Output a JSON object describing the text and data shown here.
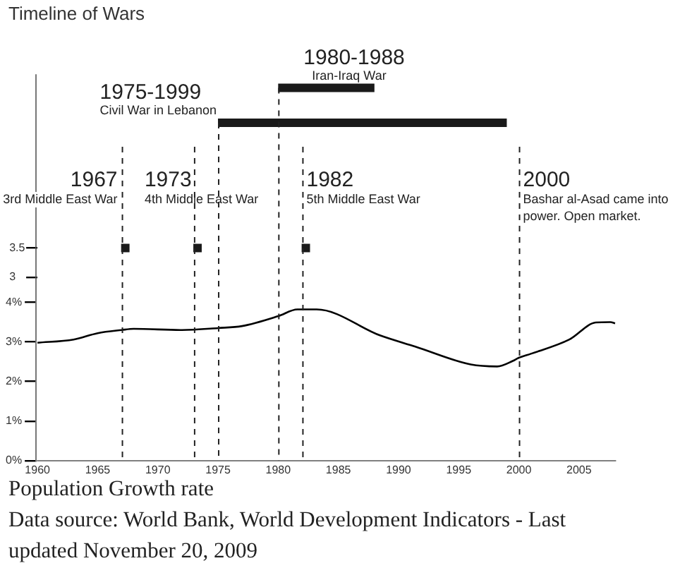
{
  "chart_data": {
    "type": "line",
    "title": "Timeline of Wars",
    "x": [
      1960,
      1963,
      1965,
      1967,
      1968,
      1972,
      1975,
      1977,
      1980,
      1981.6,
      1983.2,
      1988.5,
      1991.4,
      1996,
      1998.2,
      1999.5,
      2000,
      2001,
      2004.2,
      2006.4,
      2007.6,
      2008
    ],
    "series": [
      {
        "color": "#000000",
        "marker": "none",
        "values": [
          2.98,
          3.06,
          3.22,
          3.3,
          3.33,
          3.3,
          3.35,
          3.4,
          3.65,
          3.82,
          3.82,
          3.16,
          2.88,
          2.43,
          2.38,
          2.52,
          2.6,
          2.7,
          3.06,
          3.49,
          3.5,
          3.47
        ]
      },
      {
        "type": "scatter",
        "axis": "y2",
        "marker": "square",
        "color": "#1a1a1a",
        "x": [
          1967.3,
          1973.3,
          1982.3
        ],
        "values": [
          3.5,
          3.5,
          3.5
        ]
      },
      {
        "name": "1975-1999 Civil War in Lebanon",
        "axis": "y2",
        "marker": "none",
        "color": "#1a1a1a",
        "x": [
          1975,
          1999
        ],
        "values": [
          5.65,
          5.65
        ]
      },
      {
        "name": "1980-1988 Iran-Iraq War",
        "axis": "y2",
        "marker": "none",
        "color": "#1a1a1a",
        "x": [
          1980,
          1988
        ],
        "values": [
          6.25,
          6.25
        ]
      }
    ],
    "xlim": [
      1960,
      2008
    ],
    "xticks": [
      1960,
      1965,
      1970,
      1975,
      1980,
      1985,
      1990,
      1995,
      2000,
      2005
    ],
    "ylim": [
      0,
      9.75
    ],
    "yticks": [
      {
        "value": 0,
        "label": "0%"
      },
      {
        "value": 1,
        "label": "1%"
      },
      {
        "value": 2,
        "label": "2%"
      },
      {
        "value": 3,
        "label": "3%"
      },
      {
        "value": 4,
        "label": "4%"
      }
    ],
    "y2lim": [
      -0.15,
      6.475
    ],
    "y2ticks": [
      3,
      3.5
    ],
    "ref_lines": [
      {
        "axis": "x",
        "value": 1967,
        "label": "1967",
        "line_style": "dashed",
        "color": "#222222"
      },
      {
        "axis": "x",
        "value": 1973,
        "label": "1973",
        "line_style": "dashed",
        "color": "#222222"
      },
      {
        "axis": "x",
        "value": 1975,
        "line_style": "dashed",
        "color": "#222222"
      },
      {
        "axis": "x",
        "value": 1980,
        "line_style": "dashed",
        "color": "#222222"
      },
      {
        "axis": "x",
        "value": 1982,
        "label": "1982",
        "line_style": "dashed",
        "color": "#222222"
      },
      {
        "axis": "x",
        "value": 2000,
        "label": "2000",
        "line_style": "dashed",
        "color": "#222222"
      }
    ],
    "annotations": [
      {
        "text": "3rd Middle East War",
        "x": 1967
      },
      {
        "text": "4th Middle East War",
        "x": 1973
      },
      {
        "text": "5th Middle East War",
        "x": 1982
      },
      {
        "text": "Bashar al-Asad came into power. Open market.",
        "x": 2000
      },
      "Population Growth rate",
      "Data source: World Bank, World Development Indicators - Last updated November 20, 2009"
    ],
    "grid": false,
    "legend": false
  }
}
